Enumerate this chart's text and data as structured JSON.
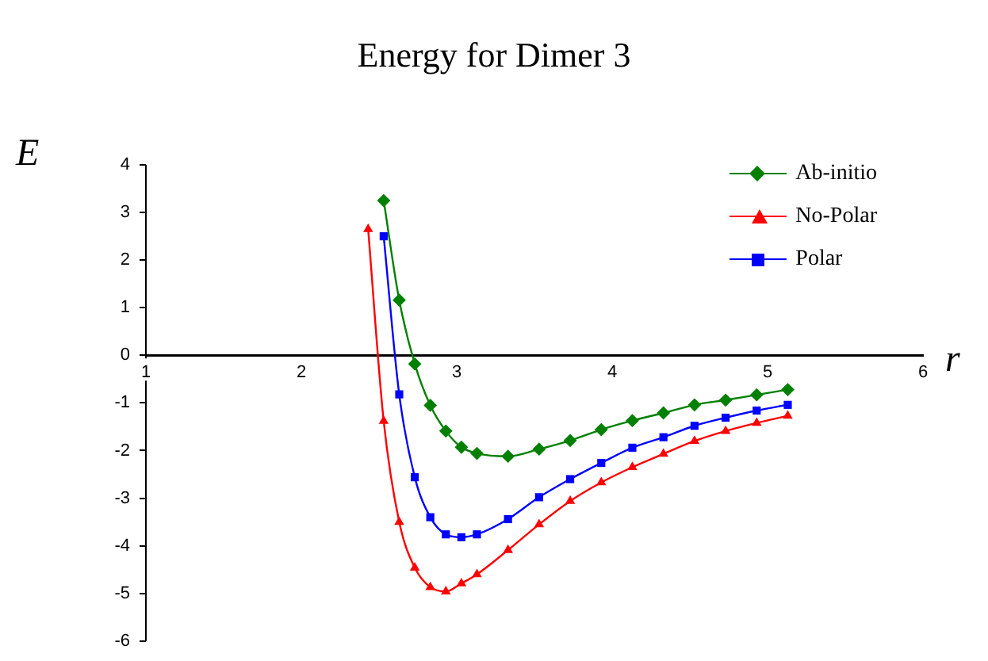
{
  "chart_data": {
    "type": "line",
    "title": "Energy for Dimer 3",
    "xlabel": "r",
    "ylabel": "E",
    "xlim": [
      1,
      6
    ],
    "xticks": [
      1,
      2,
      3,
      4,
      5,
      6
    ],
    "ylim": [
      -6,
      4
    ],
    "yticks": [
      -6,
      -5,
      -4,
      -3,
      -2,
      -1,
      0,
      1,
      2,
      3,
      4
    ],
    "grid": false,
    "legend": "top right",
    "line_style": "solid",
    "series": [
      {
        "name": "Ab-initio",
        "color": "#008000",
        "marker": "diamond",
        "x": [
          2.53,
          2.63,
          2.73,
          2.83,
          2.93,
          3.03,
          3.13,
          3.33,
          3.53,
          3.73,
          3.93,
          4.13,
          4.33,
          4.53,
          4.73,
          4.93,
          5.13
        ],
        "values": [
          3.25,
          1.16,
          -0.18,
          -1.05,
          -1.59,
          -1.93,
          -2.06,
          -2.12,
          -1.97,
          -1.79,
          -1.56,
          -1.37,
          -1.21,
          -1.04,
          -0.94,
          -0.83,
          -0.72
        ]
      },
      {
        "name": "No-Polar",
        "color": "#ff0000",
        "marker": "triangle",
        "x": [
          2.43,
          2.53,
          2.63,
          2.73,
          2.83,
          2.93,
          3.03,
          3.13,
          3.33,
          3.53,
          3.73,
          3.93,
          4.13,
          4.33,
          4.53,
          4.73,
          4.93,
          5.13
        ],
        "values": [
          2.65,
          -1.38,
          -3.5,
          -4.46,
          -4.87,
          -4.96,
          -4.79,
          -4.6,
          -4.09,
          -3.55,
          -3.06,
          -2.67,
          -2.35,
          -2.07,
          -1.8,
          -1.59,
          -1.42,
          -1.27
        ]
      },
      {
        "name": "Polar",
        "color": "#0000ff",
        "marker": "square",
        "x": [
          2.53,
          2.63,
          2.73,
          2.83,
          2.93,
          3.03,
          3.13,
          3.33,
          3.53,
          3.73,
          3.93,
          4.13,
          4.33,
          4.53,
          4.73,
          4.93,
          5.13
        ],
        "values": [
          2.5,
          -0.82,
          -2.56,
          -3.4,
          -3.76,
          -3.82,
          -3.76,
          -3.44,
          -2.98,
          -2.6,
          -2.26,
          -1.94,
          -1.72,
          -1.48,
          -1.31,
          -1.16,
          -1.04
        ]
      }
    ]
  }
}
